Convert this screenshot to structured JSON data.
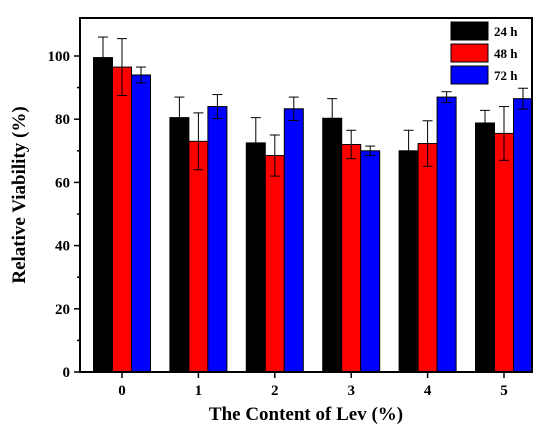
{
  "chart_data": {
    "type": "bar",
    "categories": [
      "0",
      "1",
      "2",
      "3",
      "4",
      "5"
    ],
    "series": [
      {
        "name": "24 h",
        "color": "#000000",
        "values": [
          99.5,
          80.5,
          72.5,
          80.3,
          70.0,
          78.8
        ],
        "errors": [
          6.5,
          6.5,
          8.0,
          6.2,
          6.5,
          4.0
        ]
      },
      {
        "name": "48 h",
        "color": "#ff0000",
        "values": [
          96.5,
          73.0,
          68.5,
          72.0,
          72.3,
          75.5
        ],
        "errors": [
          9.0,
          9.0,
          6.5,
          4.5,
          7.2,
          8.5
        ]
      },
      {
        "name": "72 h",
        "color": "#0000ff",
        "values": [
          94.0,
          84.0,
          83.3,
          70.0,
          87.0,
          86.5
        ],
        "errors": [
          2.5,
          3.8,
          3.7,
          1.5,
          1.7,
          3.3
        ]
      }
    ],
    "title": "",
    "xlabel": "The Content of Lev (%)",
    "ylabel": "Relative Viability (%)",
    "ylim": [
      0,
      110
    ],
    "yticks": [
      0,
      20,
      40,
      60,
      80,
      100
    ],
    "grid": false,
    "legend_position": "top-right"
  }
}
